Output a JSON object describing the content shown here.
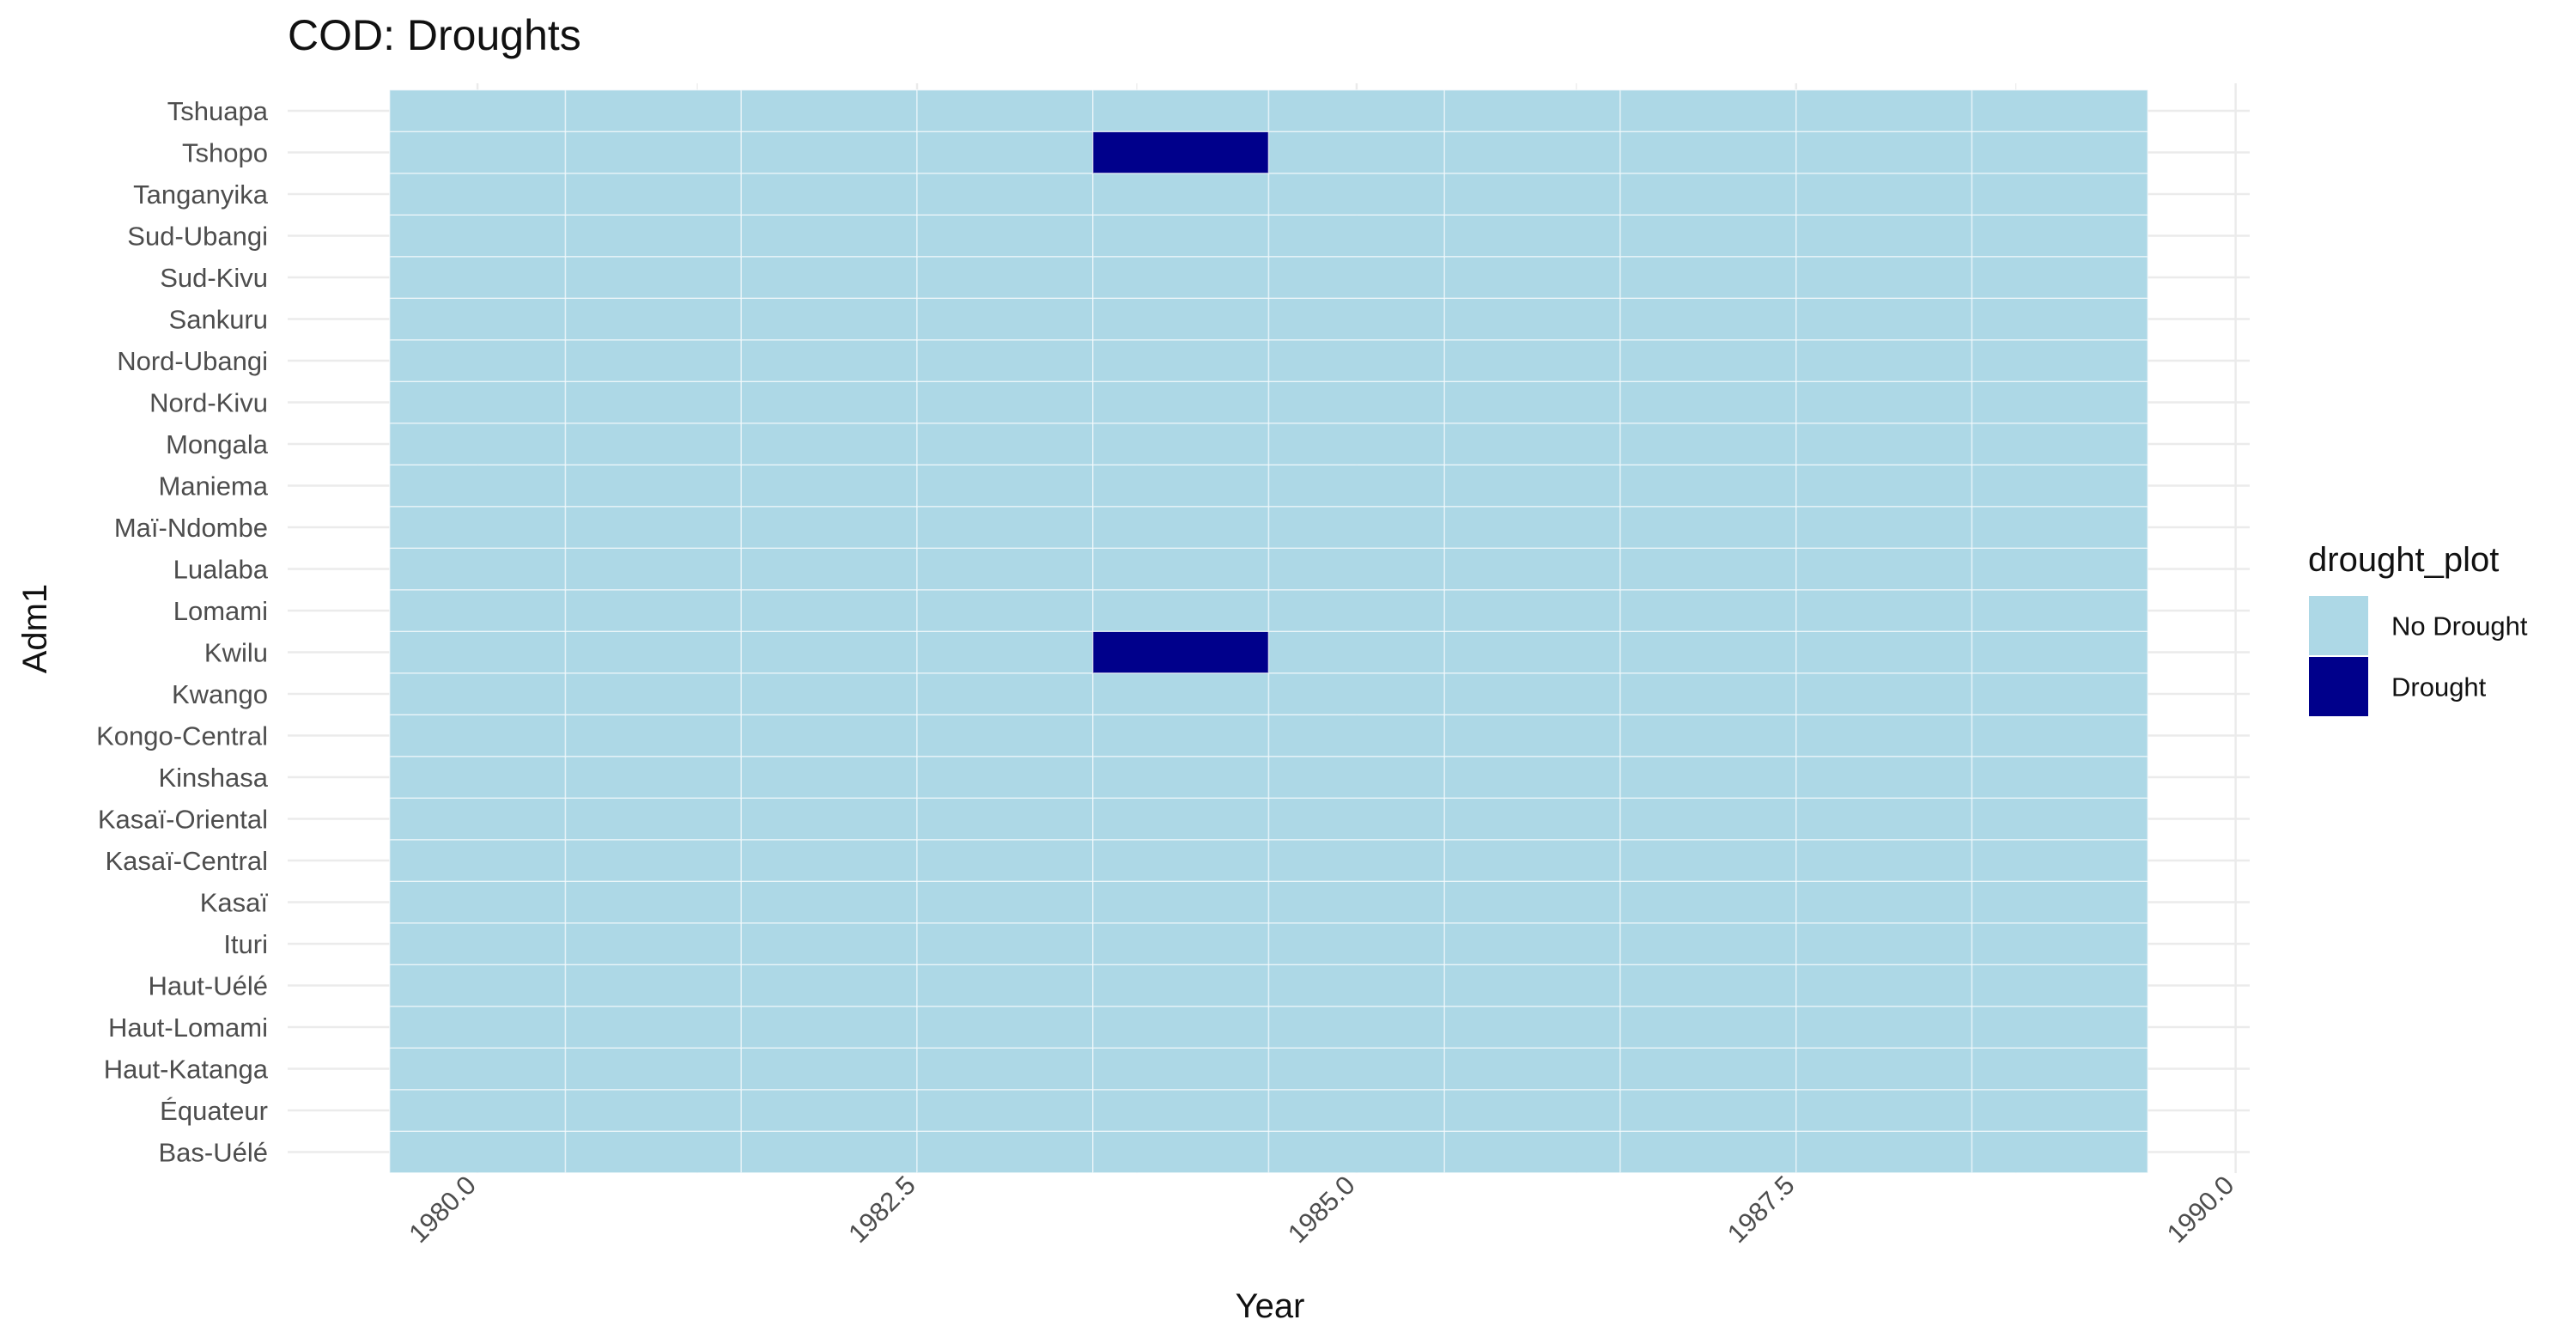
{
  "chart_data": {
    "type": "heatmap",
    "title": "COD: Droughts",
    "xlabel": "Year",
    "ylabel": "Adm1",
    "xlim": [
      1978.92,
      1990.08
    ],
    "x_ticks": [
      "1980.0",
      "1982.5",
      "1985.0",
      "1987.5",
      "1990.0"
    ],
    "x_tick_values": [
      1980.0,
      1982.5,
      1985.0,
      1987.5,
      1990.0
    ],
    "years": [
      1980,
      1981,
      1982,
      1983,
      1984,
      1985,
      1986,
      1987,
      1988,
      1989
    ],
    "regions": [
      "Bas-Uélé",
      "Équateur",
      "Haut-Katanga",
      "Haut-Lomami",
      "Haut-Uélé",
      "Ituri",
      "Kasaï",
      "Kasaï-Central",
      "Kasaï-Oriental",
      "Kinshasa",
      "Kongo-Central",
      "Kwango",
      "Kwilu",
      "Lomami",
      "Lualaba",
      "Maï-Ndombe",
      "Maniema",
      "Mongala",
      "Nord-Kivu",
      "Nord-Ubangi",
      "Sankuru",
      "Sud-Kivu",
      "Sud-Ubangi",
      "Tanganyika",
      "Tshopo",
      "Tshuapa"
    ],
    "drought_cells": [
      {
        "region": "Tshopo",
        "year": 1984
      },
      {
        "region": "Kwilu",
        "year": 1984
      }
    ],
    "legend": {
      "title": "drought_plot",
      "position": "right",
      "items": [
        {
          "label": "No Drought",
          "color": "#add8e6"
        },
        {
          "label": "Drought",
          "color": "#00008b"
        }
      ]
    },
    "grid": true,
    "colors": {
      "no_drought": "#add8e6",
      "drought": "#00008b",
      "gridline": "#ebebeb"
    }
  }
}
